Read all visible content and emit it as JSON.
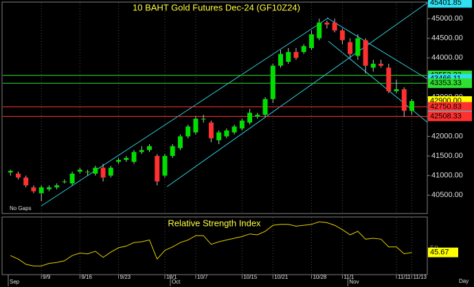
{
  "chart_data": [
    {
      "type": "candlestick",
      "title": "10 BAHT  Gold Futures Dec-24  (GF10Z24)",
      "note": "No Gaps",
      "open": [
        41080,
        41050,
        40950,
        40700,
        40550,
        40650,
        40700,
        40850,
        40800,
        41100,
        41100,
        41050,
        41200,
        41000,
        41350,
        41400,
        41350,
        41600,
        41650,
        41500,
        41000,
        41500,
        41700,
        42000,
        42100,
        42450,
        42350,
        41900,
        42000,
        42100,
        42200,
        42350,
        42500,
        42550,
        42950,
        43800,
        43900,
        44150,
        44150,
        44250,
        44500,
        44900,
        44900,
        44700,
        44400,
        44050,
        44450,
        43750,
        43850,
        43750,
        43150,
        43200,
        42650
      ],
      "high": [
        41150,
        41100,
        41000,
        40750,
        40750,
        40750,
        40800,
        40900,
        41100,
        41200,
        41150,
        41250,
        41300,
        41250,
        41450,
        41500,
        41650,
        41750,
        41800,
        41550,
        41550,
        41800,
        42050,
        42300,
        42500,
        42550,
        42400,
        42150,
        42200,
        42300,
        42450,
        42700,
        42600,
        43000,
        43850,
        44200,
        44250,
        44250,
        44350,
        44700,
        45000,
        44950,
        45000,
        44750,
        44500,
        44600,
        44500,
        43950,
        43950,
        43850,
        43450,
        43250,
        42950
      ],
      "low": [
        41000,
        40900,
        40700,
        40550,
        40350,
        40600,
        40650,
        40800,
        40750,
        41050,
        41000,
        41000,
        40850,
        40950,
        41300,
        41350,
        41300,
        41550,
        41600,
        40750,
        40950,
        41450,
        41650,
        41950,
        42050,
        42350,
        41850,
        41800,
        41950,
        42050,
        42150,
        42300,
        42450,
        42500,
        42850,
        43750,
        43850,
        43950,
        44100,
        44200,
        44450,
        44750,
        44650,
        44350,
        44000,
        43950,
        43600,
        43650,
        43750,
        43100,
        43100,
        42500,
        42550
      ],
      "close": [
        41120,
        40950,
        40750,
        40600,
        40700,
        40700,
        40750,
        40850,
        41050,
        41150,
        41100,
        41200,
        40950,
        41200,
        41400,
        41450,
        41600,
        41650,
        41750,
        40850,
        41500,
        41750,
        42000,
        42250,
        42450,
        42450,
        41950,
        42100,
        42150,
        42250,
        42400,
        42600,
        42550,
        42950,
        43800,
        44100,
        44150,
        44000,
        44300,
        44600,
        44900,
        44850,
        44700,
        44450,
        44100,
        44500,
        43800,
        43850,
        43800,
        43150,
        43200,
        42650,
        42900
      ],
      "up_color": "#00e000",
      "down_color": "#ff3030",
      "xlim": [
        -1,
        54
      ],
      "ylim": [
        40050,
        45440
      ],
      "yticks": [
        {
          "value": 40500,
          "label": "40500.00"
        },
        {
          "value": 41000,
          "label": "41000.00"
        },
        {
          "value": 41500,
          "label": "41500.00"
        },
        {
          "value": 42000,
          "label": "42000.00"
        },
        {
          "value": 42500,
          "label": "42500.00"
        },
        {
          "value": 43000,
          "label": "43000.00"
        },
        {
          "value": 43500,
          "label": "43500.00"
        },
        {
          "value": 44000,
          "label": "44000.00"
        },
        {
          "value": 44500,
          "label": "44500.00"
        },
        {
          "value": 45000,
          "label": "45000.00"
        }
      ],
      "levels": [
        {
          "value": 45401.85,
          "label": "45401.85",
          "color": "#30e0f0",
          "line": false
        },
        {
          "value": 43553.33,
          "label": "43553.33",
          "color": "#30e030",
          "line": true
        },
        {
          "value": 43466.11,
          "label": "43466.11",
          "color": "#30e0f0",
          "line": false
        },
        {
          "value": 43353.33,
          "label": "43353.33",
          "color": "#30e030",
          "line": true
        },
        {
          "value": 42900,
          "label": "42900.00",
          "color": "#ffff00",
          "line": false
        },
        {
          "value": 42750.83,
          "label": "42750.83",
          "color": "#ff3030",
          "line": true
        },
        {
          "value": 42526.67,
          "label": "42526.67",
          "color": "#30e0f0",
          "line": false
        },
        {
          "value": 42508.33,
          "label": "42508.33",
          "color": "#ff3030",
          "line": true
        }
      ],
      "xticks": [
        {
          "value": 4,
          "label": "9/9"
        },
        {
          "value": 9,
          "label": "9/16"
        },
        {
          "value": 14,
          "label": "9/23"
        },
        {
          "value": 20,
          "label": "10/1"
        },
        {
          "value": 24,
          "label": "10/7"
        },
        {
          "value": 30,
          "label": "10/15"
        },
        {
          "value": 34,
          "label": "10/21"
        },
        {
          "value": 39,
          "label": "10/28"
        },
        {
          "value": 43,
          "label": "11/1"
        },
        {
          "value": 50,
          "label": "11/11"
        },
        {
          "value": 52,
          "label": "11/13"
        }
      ],
      "month_ticks": [
        {
          "value": -1,
          "label": "Sep"
        },
        {
          "value": 20,
          "label": "Oct"
        },
        {
          "value": 43,
          "label": "Nov"
        }
      ],
      "x_unit": "Day"
    },
    {
      "type": "line",
      "title": "Relative Strength Index",
      "values": [
        42,
        38,
        32,
        30,
        30,
        33,
        34,
        36,
        42,
        45,
        44,
        47,
        40,
        46,
        51,
        53,
        57,
        58,
        60,
        38,
        48,
        52,
        57,
        60,
        65,
        65,
        55,
        58,
        60,
        62,
        64,
        67,
        66,
        70,
        77,
        78,
        78,
        76,
        77,
        78,
        81,
        80,
        77,
        72,
        66,
        70,
        61,
        62,
        61,
        52,
        52,
        44,
        45.67
      ],
      "color": "#e6d200",
      "ylim": [
        20,
        85
      ],
      "yticks": [
        50
      ]
    }
  ]
}
